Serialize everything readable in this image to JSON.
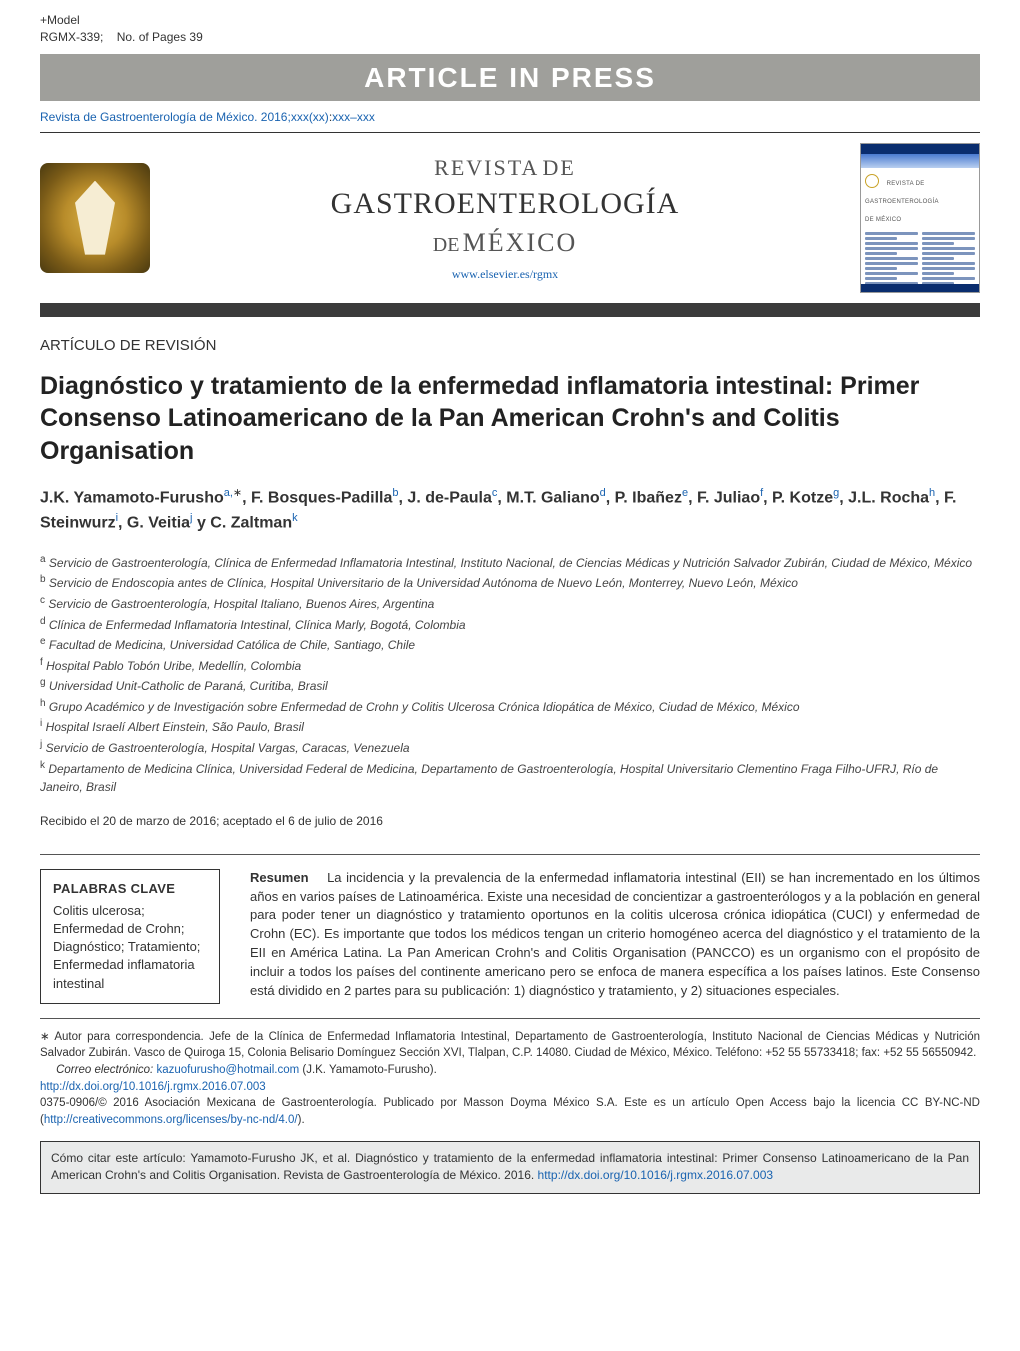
{
  "header": {
    "model_prefix": "+Model",
    "model_id": "RGMX-339;",
    "pages_label": "No. of Pages 39",
    "banner": "ARTICLE IN PRESS",
    "citation_prefix": "Revista de Gastroenterología de México. 2016;",
    "citation_vol": "xxx(xx)",
    "citation_sep": ":",
    "citation_pages": "xxx–xxx"
  },
  "journal": {
    "line1": "REVISTA",
    "line1_de": "DE",
    "line2": "GASTROENTEROLOGÍA",
    "line3_de": "DE",
    "line3": "MÉXICO",
    "url": "www.elsevier.es/rgmx",
    "cover_title_1": "REVISTA DE",
    "cover_title_2": "GASTROENTEROLOGÍA",
    "cover_title_3": "DE MÉXICO"
  },
  "article": {
    "type": "ARTÍCULO DE REVISIÓN",
    "title": "Diagnóstico y tratamiento de la enfermedad inflamatoria intestinal: Primer Consenso Latinoamericano de la Pan American Crohn's and Colitis Organisation",
    "authors_html_parts": {
      "a1": "J.K. Yamamoto-Furusho",
      "a1_sup": "a,",
      "a1_ast": "∗",
      "a2": ", F. Bosques-Padilla",
      "a2_sup": "b",
      "a3": ", J. de-Paula",
      "a3_sup": "c",
      "a4": ", M.T. Galiano",
      "a4_sup": "d",
      "a5": ", P. Ibañez",
      "a5_sup": "e",
      "a6": ", F. Juliao",
      "a6_sup": "f",
      "a7": ", P. Kotze",
      "a7_sup": "g",
      "a8": ", J.L. Rocha",
      "a8_sup": "h",
      "a9": ", F. Steinwurz",
      "a9_sup": "i",
      "a10": ", G. Veitia",
      "a10_sup": "j",
      "y": " y ",
      "a11": "C. Zaltman",
      "a11_sup": "k"
    },
    "affiliations": {
      "a": "Servicio de Gastroenterología, Clínica de Enfermedad Inflamatoria Intestinal, Instituto Nacional, de Ciencias Médicas y Nutrición Salvador Zubirán, Ciudad de México, México",
      "b": "Servicio de Endoscopia antes de Clínica, Hospital Universitario de la Universidad Autónoma de Nuevo León, Monterrey, Nuevo León, México",
      "c": "Servicio de Gastroenterología, Hospital Italiano, Buenos Aires, Argentina",
      "d": "Clínica de Enfermedad Inflamatoria Intestinal, Clínica Marly, Bogotá, Colombia",
      "e": "Facultad de Medicina, Universidad Católica de Chile, Santiago, Chile",
      "f": "Hospital Pablo Tobón Uribe, Medellín, Colombia",
      "g": "Universidad Unit-Catholic de Paraná, Curitiba, Brasil",
      "h": "Grupo Académico y de Investigación sobre Enfermedad de Crohn y Colitis Ulcerosa Crónica Idiopática de México, Ciudad de México, México",
      "i": "Hospital Israelí Albert Einstein, São Paulo, Brasil",
      "j": "Servicio de Gastroenterología, Hospital Vargas, Caracas, Venezuela",
      "k": "Departamento de Medicina Clínica, Universidad Federal de Medicina, Departamento de Gastroenterología, Hospital Universitario Clementino Fraga Filho-UFRJ, Río de Janeiro, Brasil"
    },
    "dates": "Recibido el 20 de marzo de 2016; aceptado el 6 de julio de 2016",
    "keywords_heading": "PALABRAS CLAVE",
    "keywords": "Colitis ulcerosa; Enfermedad de Crohn; Diagnóstico; Tratamiento; Enfermedad inflamatoria intestinal",
    "abstract_label": "Resumen",
    "abstract": "La incidencia y la prevalencia de la enfermedad inflamatoria intestinal (EII) se han incrementado en los últimos años en varios países de Latinoamérica. Existe una necesidad de concientizar a gastroenterólogos y a la población en general para poder tener un diagnóstico y tratamiento oportunos en la colitis ulcerosa crónica idiopática (CUCI) y enfermedad de Crohn (EC). Es importante que todos los médicos tengan un criterio homogéneo acerca del diagnóstico y el tratamiento de la EII en América Latina. La Pan American Crohn's and Colitis Organisation (PANCCO) es un organismo con el propósito de incluir a todos los países del continente americano pero se enfoca de manera específica a los países latinos. Este Consenso está dividido en 2 partes para su publicación: 1) diagnóstico y tratamiento, y 2) situaciones especiales."
  },
  "correspondence": {
    "ast_line": "∗ Autor para correspondencia. Jefe de la Clínica de Enfermedad Inflamatoria Intestinal, Departamento de Gastroenterología, Instituto Nacional de Ciencias Médicas y Nutrición Salvador Zubirán. Vasco de Quiroga 15, Colonia Belisario Domínguez Sección XVI, Tlalpan, C.P. 14080. Ciudad de México, México. Teléfono: +52 55 55733418; fax: +52 55 56550942.",
    "email_label": "Correo electrónico: ",
    "email": "kazuofurusho@hotmail.com",
    "email_author": " (J.K. Yamamoto-Furusho).",
    "doi": "http://dx.doi.org/10.1016/j.rgmx.2016.07.003",
    "copyright": "0375-0906/© 2016 Asociación Mexicana de Gastroenterología. Publicado por Masson Doyma México S.A. Este es un artículo Open Access bajo la licencia CC BY-NC-ND (",
    "cc_url": "http://creativecommons.org/licenses/by-nc-nd/4.0/",
    "copyright_close": ")."
  },
  "how_to_cite": {
    "text": "Cómo citar este artículo: Yamamoto-Furusho JK, et al. Diagnóstico y tratamiento de la enfermedad inflamatoria intestinal: Primer Consenso Latinoamericano de la Pan American Crohn's and Colitis Organisation. Revista de Gastroenterología de México. 2016. ",
    "doi": "http://dx.doi.org/10.1016/j.rgmx.2016.07.003"
  },
  "colors": {
    "link": "#1a63b0",
    "band": "#9f9f9b",
    "darkbar": "#3b3b3b",
    "cite_box_bg": "#e9eaea"
  }
}
